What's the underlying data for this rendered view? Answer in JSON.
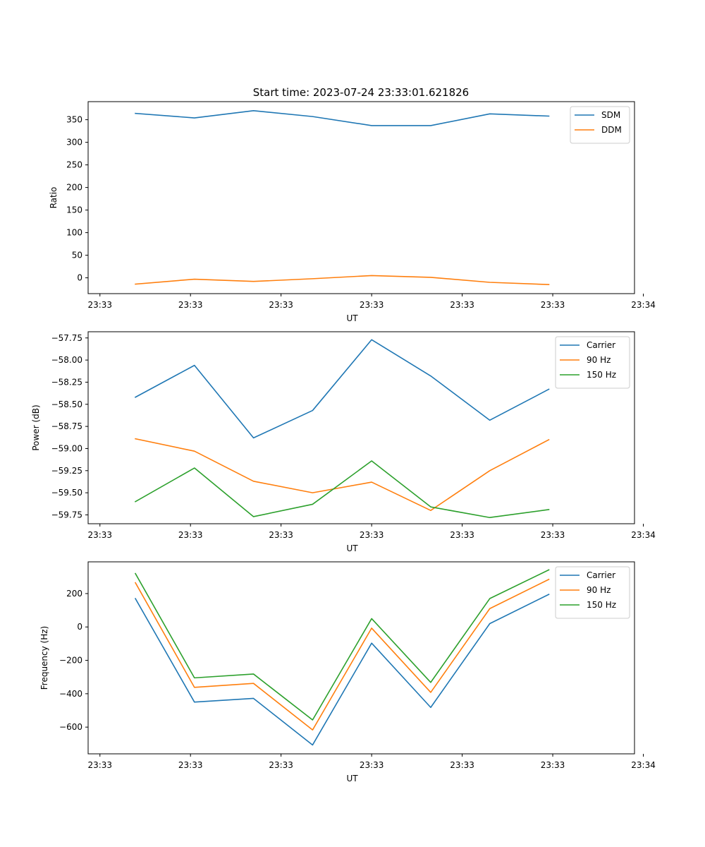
{
  "figure": {
    "title": "Start time: 2023-07-24 23:33:01.621826"
  },
  "colors": {
    "blue": "#1f77b4",
    "orange": "#ff7f0e",
    "green": "#2ca02c"
  },
  "chart_data": [
    {
      "type": "line",
      "title": "Start time: 2023-07-24 23:33:01.621826",
      "xlabel": "UT",
      "ylabel": "Ratio",
      "x": [
        1,
        2,
        3,
        4,
        5,
        6,
        7,
        8
      ],
      "xlim": [
        0.2,
        9.45
      ],
      "x_ticks": [
        0.4,
        1.933,
        3.466,
        5.0,
        6.533,
        8.066,
        9.6
      ],
      "x_tick_labels": [
        "23:33",
        "23:33",
        "23:33",
        "23:33",
        "23:33",
        "23:33",
        "23:34"
      ],
      "ylim": [
        -35,
        390
      ],
      "y_ticks": [
        0,
        50,
        100,
        150,
        200,
        250,
        300,
        350
      ],
      "y_tick_labels": [
        "0",
        "50",
        "100",
        "150",
        "200",
        "250",
        "300",
        "350"
      ],
      "legend_position": "upper-right",
      "series": [
        {
          "name": "SDM",
          "color": "blue",
          "values": [
            364,
            354,
            370,
            357,
            337,
            337,
            363,
            358
          ]
        },
        {
          "name": "DDM",
          "color": "orange",
          "values": [
            -14,
            -3,
            -8,
            -2,
            5,
            1,
            -10,
            -15
          ]
        }
      ]
    },
    {
      "type": "line",
      "title": "",
      "xlabel": "UT",
      "ylabel": "Power (dB)",
      "x": [
        1,
        2,
        3,
        4,
        5,
        6,
        7,
        8
      ],
      "xlim": [
        0.2,
        9.45
      ],
      "x_ticks": [
        0.4,
        1.933,
        3.466,
        5.0,
        6.533,
        8.066,
        9.6
      ],
      "x_tick_labels": [
        "23:33",
        "23:33",
        "23:33",
        "23:33",
        "23:33",
        "23:33",
        "23:34"
      ],
      "ylim": [
        -59.85,
        -57.68
      ],
      "y_ticks": [
        -59.75,
        -59.5,
        -59.25,
        -59.0,
        -58.75,
        -58.5,
        -58.25,
        -58.0,
        -57.75
      ],
      "y_tick_labels": [
        "−59.75",
        "−59.50",
        "−59.25",
        "−59.00",
        "−58.75",
        "−58.50",
        "−58.25",
        "−58.00",
        "−57.75"
      ],
      "legend_position": "upper-right",
      "series": [
        {
          "name": "Carrier",
          "color": "blue",
          "values": [
            -58.42,
            -58.06,
            -58.88,
            -58.57,
            -57.77,
            -58.18,
            -58.68,
            -58.33
          ]
        },
        {
          "name": "90 Hz",
          "color": "orange",
          "values": [
            -58.89,
            -59.03,
            -59.37,
            -59.5,
            -59.38,
            -59.7,
            -59.25,
            -58.9
          ]
        },
        {
          "name": "150 Hz",
          "color": "green",
          "values": [
            -59.6,
            -59.22,
            -59.77,
            -59.63,
            -59.14,
            -59.66,
            -59.78,
            -59.69
          ]
        }
      ]
    },
    {
      "type": "line",
      "title": "",
      "xlabel": "UT",
      "ylabel": "Frequency (Hz)",
      "x": [
        1,
        2,
        3,
        4,
        5,
        6,
        7,
        8
      ],
      "xlim": [
        0.2,
        9.45
      ],
      "x_ticks": [
        0.4,
        1.933,
        3.466,
        5.0,
        6.533,
        8.066,
        9.6
      ],
      "x_tick_labels": [
        "23:33",
        "23:33",
        "23:33",
        "23:33",
        "23:33",
        "23:33",
        "23:34"
      ],
      "ylim": [
        -760,
        390
      ],
      "y_ticks": [
        -600,
        -400,
        -200,
        0,
        200
      ],
      "y_tick_labels": [
        "−600",
        "−400",
        "−200",
        "0",
        "200"
      ],
      "legend_position": "upper-right",
      "series": [
        {
          "name": "Carrier",
          "color": "blue",
          "values": [
            170,
            -450,
            -428,
            -707,
            -97,
            -482,
            20,
            195
          ]
        },
        {
          "name": "90 Hz",
          "color": "orange",
          "values": [
            265,
            -362,
            -338,
            -617,
            -7,
            -392,
            110,
            285
          ]
        },
        {
          "name": "150 Hz",
          "color": "green",
          "values": [
            320,
            -305,
            -282,
            -557,
            50,
            -332,
            170,
            342
          ]
        }
      ]
    }
  ]
}
